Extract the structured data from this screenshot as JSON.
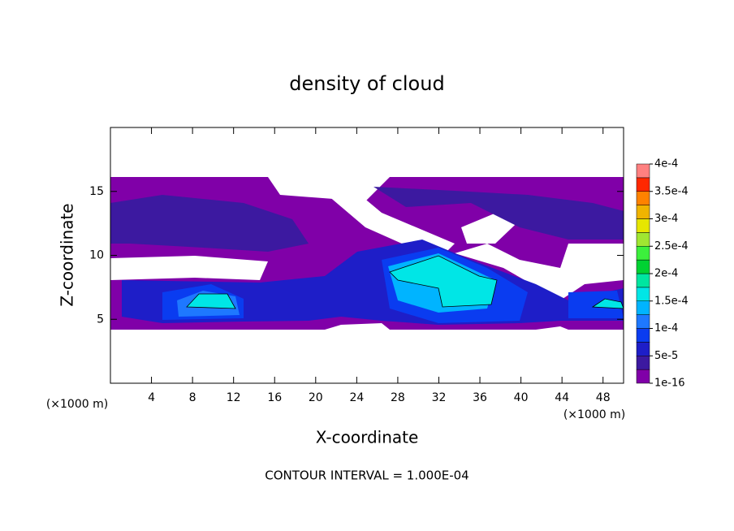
{
  "chart_data": {
    "type": "contour",
    "title": "density of cloud",
    "x_label": "X-coordinate",
    "y_label": "Z-coordinate",
    "x_unit": "(×1000 m)",
    "xlim": [
      0,
      50
    ],
    "xticks": [
      4,
      8,
      12,
      16,
      20,
      24,
      28,
      32,
      36,
      40,
      44,
      48
    ],
    "ylim": [
      0,
      20
    ],
    "yticks": [
      5,
      10,
      15
    ],
    "footer": "CONTOUR INTERVAL = 1.000E-04",
    "colorbar": {
      "ticks": [
        {
          "value": 1e-16,
          "label": "1e-16"
        },
        {
          "value": 5e-05,
          "label": "5e-5"
        },
        {
          "value": 0.0001,
          "label": "1e-4"
        },
        {
          "value": 0.00015,
          "label": "1.5e-4"
        },
        {
          "value": 0.0002,
          "label": "2e-4"
        },
        {
          "value": 0.00025,
          "label": "2.5e-4"
        },
        {
          "value": 0.0003,
          "label": "3e-4"
        },
        {
          "value": 0.00035,
          "label": "3.5e-4"
        },
        {
          "value": 0.0004,
          "label": "4e-4"
        }
      ],
      "colors": [
        "#8000a8",
        "#3c19a0",
        "#1e1ec8",
        "#0a3cf0",
        "#1e78ff",
        "#00b4ff",
        "#00e6e6",
        "#00e6a0",
        "#00d232",
        "#3cf03c",
        "#a0e632",
        "#e6e600",
        "#f0b400",
        "#ff8200",
        "#ff2800",
        "#ff8080"
      ]
    }
  }
}
